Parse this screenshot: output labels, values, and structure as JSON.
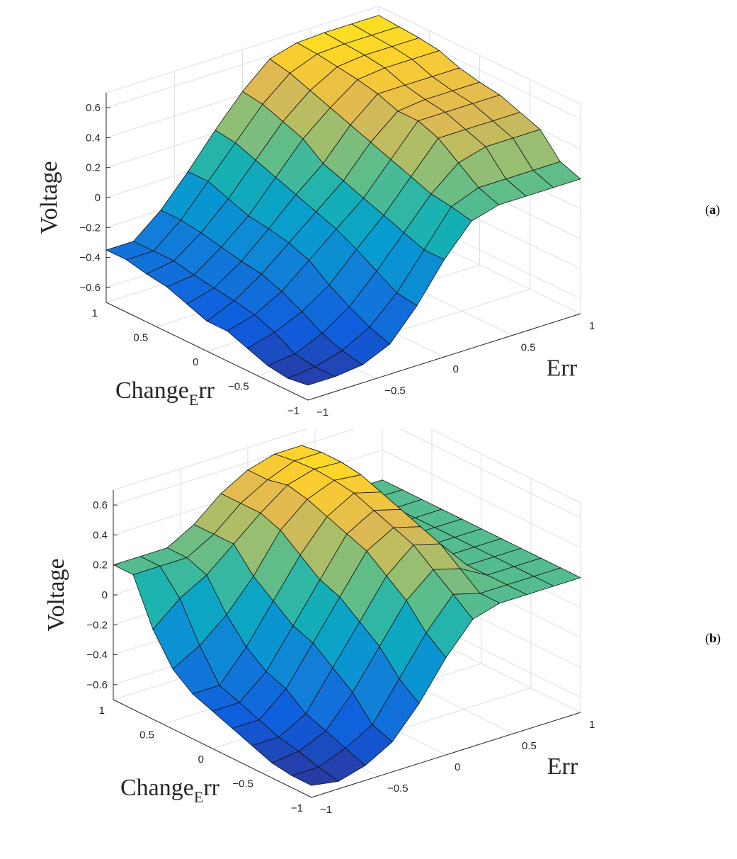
{
  "chart_data": [
    {
      "type": "surface",
      "panel_label_open": "(",
      "panel_label": "a",
      "panel_label_close": ")",
      "zlabel": "Voltage",
      "xlabel": "Err",
      "ylabel_main": "Change",
      "ylabel_sub": "E",
      "ylabel_tail": "rr",
      "xlim": [
        -1,
        1
      ],
      "ylim": [
        -1,
        1
      ],
      "zlim": [
        -0.7,
        0.7
      ],
      "z_ticks": [
        "0.6",
        "0.4",
        "0.2",
        "0",
        "−0.2",
        "−0.4",
        "−0.6"
      ],
      "x_ticks": [
        "−1",
        "−0.5",
        "0",
        "0.5",
        "1"
      ],
      "y_ticks": [
        "1",
        "0.5",
        "0",
        "−0.5",
        "−1"
      ],
      "grid": true,
      "colormap": "parula",
      "err_grid": [
        -1,
        -0.8,
        -0.6,
        -0.4,
        -0.2,
        0,
        0.2,
        0.4,
        0.6,
        0.8,
        1
      ],
      "change_err_grid": [
        -1,
        -0.8,
        -0.6,
        -0.4,
        -0.2,
        0,
        0.2,
        0.4,
        0.6,
        0.8,
        1
      ],
      "voltage_rows_by_change_err": [
        [
          -0.6,
          -0.6,
          -0.58,
          -0.5,
          -0.3,
          -0.05,
          0.15,
          0.2,
          0.2,
          0.2,
          0.2
        ],
        [
          -0.62,
          -0.6,
          -0.55,
          -0.45,
          -0.28,
          -0.05,
          0.18,
          0.25,
          0.25,
          0.25,
          0.25
        ],
        [
          -0.6,
          -0.58,
          -0.5,
          -0.38,
          -0.2,
          0.0,
          0.2,
          0.35,
          0.4,
          0.4,
          0.4
        ],
        [
          -0.55,
          -0.5,
          -0.42,
          -0.3,
          -0.12,
          0.05,
          0.25,
          0.45,
          0.45,
          0.45,
          0.45
        ],
        [
          -0.5,
          -0.45,
          -0.35,
          -0.2,
          -0.05,
          0.1,
          0.3,
          0.5,
          0.5,
          0.5,
          0.5
        ],
        [
          -0.5,
          -0.42,
          -0.3,
          -0.15,
          0.0,
          0.15,
          0.35,
          0.5,
          0.52,
          0.52,
          0.52
        ],
        [
          -0.45,
          -0.4,
          -0.28,
          -0.12,
          0.05,
          0.2,
          0.4,
          0.55,
          0.55,
          0.55,
          0.55
        ],
        [
          -0.4,
          -0.38,
          -0.25,
          -0.1,
          0.1,
          0.3,
          0.45,
          0.58,
          0.6,
          0.6,
          0.6
        ],
        [
          -0.38,
          -0.35,
          -0.22,
          -0.05,
          0.15,
          0.35,
          0.5,
          0.6,
          0.62,
          0.62,
          0.62
        ],
        [
          -0.35,
          -0.35,
          -0.2,
          0.0,
          0.2,
          0.4,
          0.55,
          0.62,
          0.63,
          0.63,
          0.63
        ],
        [
          -0.35,
          -0.35,
          -0.2,
          0.0,
          0.22,
          0.42,
          0.58,
          0.63,
          0.64,
          0.64,
          0.64
        ]
      ]
    },
    {
      "type": "surface",
      "panel_label_open": "(",
      "panel_label": "b",
      "panel_label_close": ")",
      "zlabel": "Voltage",
      "xlabel": "Err",
      "ylabel_main": "Change",
      "ylabel_sub": "E",
      "ylabel_tail": "rr",
      "xlim": [
        -1,
        1
      ],
      "ylim": [
        -1,
        1
      ],
      "zlim": [
        -0.7,
        0.7
      ],
      "z_ticks": [
        "0.6",
        "0.4",
        "0.2",
        "0",
        "−0.2",
        "−0.4",
        "−0.6"
      ],
      "x_ticks": [
        "−1",
        "−0.5",
        "0",
        "0.5",
        "1"
      ],
      "y_ticks": [
        "1",
        "0.5",
        "0",
        "−0.5",
        "−1"
      ],
      "grid": true,
      "colormap": "parula",
      "err_grid": [
        -1,
        -0.8,
        -0.6,
        -0.4,
        -0.2,
        0,
        0.2,
        0.4,
        0.6,
        0.8,
        1
      ],
      "change_err_grid": [
        -1,
        -0.8,
        -0.6,
        -0.4,
        -0.2,
        0,
        0.2,
        0.4,
        0.6,
        0.8,
        1
      ],
      "voltage_rows_by_change_err": [
        [
          -0.62,
          -0.65,
          -0.6,
          -0.5,
          -0.3,
          -0.05,
          0.15,
          0.2,
          0.2,
          0.2,
          0.2
        ],
        [
          -0.62,
          -0.62,
          -0.55,
          -0.45,
          -0.2,
          0.05,
          0.25,
          0.2,
          0.2,
          0.2,
          0.2
        ],
        [
          -0.6,
          -0.58,
          -0.5,
          -0.3,
          -0.05,
          0.2,
          0.35,
          0.3,
          0.2,
          0.2,
          0.2
        ],
        [
          -0.55,
          -0.55,
          -0.45,
          -0.2,
          0.05,
          0.3,
          0.45,
          0.4,
          0.2,
          0.2,
          0.2
        ],
        [
          -0.5,
          -0.5,
          -0.35,
          -0.1,
          0.15,
          0.4,
          0.5,
          0.45,
          0.2,
          0.2,
          0.2
        ],
        [
          -0.45,
          -0.45,
          -0.3,
          -0.05,
          0.2,
          0.45,
          0.55,
          0.5,
          0.2,
          0.2,
          0.2
        ],
        [
          -0.4,
          -0.4,
          -0.2,
          0.05,
          0.3,
          0.5,
          0.6,
          0.55,
          0.2,
          0.2,
          0.2
        ],
        [
          -0.3,
          -0.2,
          -0.05,
          0.15,
          0.4,
          0.55,
          0.62,
          0.6,
          0.2,
          0.2,
          0.2
        ],
        [
          -0.1,
          0.05,
          0.15,
          0.3,
          0.45,
          0.58,
          0.63,
          0.62,
          0.2,
          0.2,
          0.2
        ],
        [
          0.2,
          0.2,
          0.2,
          0.3,
          0.45,
          0.55,
          0.62,
          0.62,
          0.2,
          0.2,
          0.2
        ],
        [
          0.2,
          0.2,
          0.2,
          0.3,
          0.45,
          0.55,
          0.6,
          0.6,
          0.2,
          0.2,
          0.2
        ]
      ]
    }
  ]
}
